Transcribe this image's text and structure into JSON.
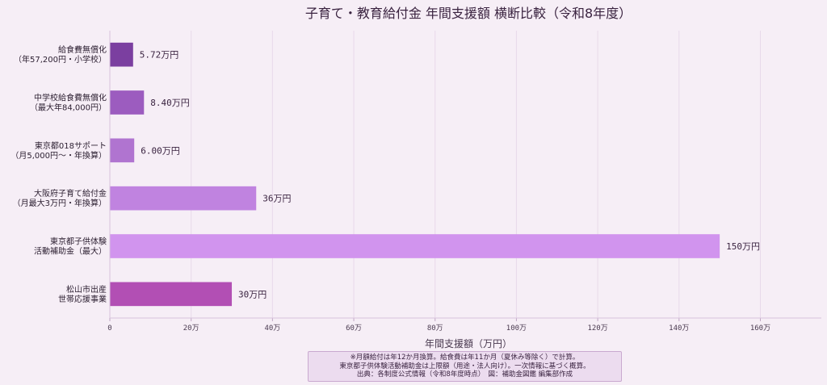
{
  "chart_data": {
    "type": "bar",
    "orientation": "horizontal",
    "title": "子育て・教育給付金 年間支援額 横断比較（令和8年度）",
    "xlabel": "年間支援額（万円）",
    "ylabel": "",
    "xlim": [
      0,
      175
    ],
    "grid": true,
    "categories": [
      [
        "給食費無償化",
        "（年57,200円・小学校）"
      ],
      [
        "中学校給食費無償化",
        "（最大年84,000円）"
      ],
      [
        "東京都018サポート",
        "（月5,000円〜・年換算）"
      ],
      [
        "大阪府子育て給付金",
        "（月最大3万円・年換算）"
      ],
      [
        "東京都子供体験",
        "活動補助金（最大）"
      ],
      [
        "松山市出産",
        "世帯応援事業"
      ]
    ],
    "values": [
      5.72,
      8.4,
      6.0,
      36,
      150,
      30
    ],
    "value_labels": [
      "5.72万円",
      "8.40万円",
      "6.00万円",
      "36万円",
      "150万円",
      "30万円"
    ],
    "colors": [
      "#7b3fa0",
      "#9c5cbf",
      "#b074d0",
      "#c083e0",
      "#d194ee",
      "#b24fb4"
    ],
    "ticks": [
      0,
      20,
      40,
      60,
      80,
      100,
      120,
      140,
      160
    ],
    "tick_labels": [
      "0",
      "20万",
      "40万",
      "60万",
      "80万",
      "100万",
      "120万",
      "140万",
      "160万"
    ]
  },
  "footnote": [
    "※月額給付は年12か月換算。給食費は年11か月（夏休み等除く）で計算。",
    "東京都子供体験活動補助金は上限額（用途・法人向け）。一次情報に基づく概算。",
    "出典：各制度公式情報（令和8年度時点）　図：補助金図鑑 編集部作成"
  ]
}
